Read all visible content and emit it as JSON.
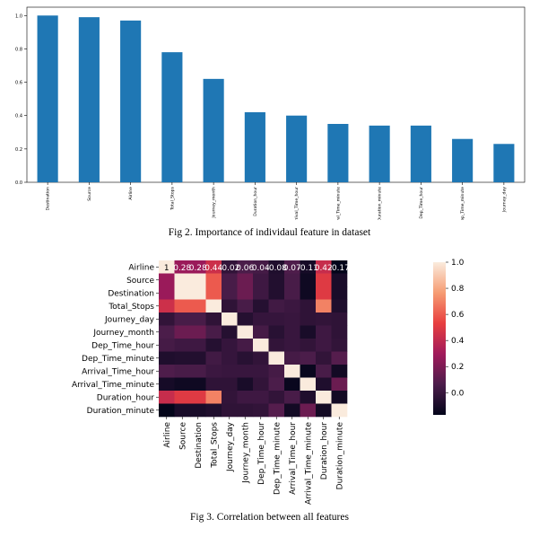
{
  "captions": {
    "fig2": "Fig 2. Importance of individaul feature in dataset",
    "fig3": "Fig 3. Correlation between all features"
  },
  "chart_data": [
    {
      "type": "bar",
      "categories": [
        "Destination",
        "Source",
        "Airline",
        "Total_Stops",
        "Journey_month",
        "Duration_hour",
        "Arrival_Time_hour",
        "Arrival_Time_minute",
        "Duration_minute",
        "Dep_Time_hour",
        "Dep_Time_minute",
        "Journey_day"
      ],
      "values": [
        1.0,
        0.99,
        0.97,
        0.78,
        0.62,
        0.42,
        0.4,
        0.35,
        0.34,
        0.34,
        0.26,
        0.23
      ],
      "yticks": [
        "0.0",
        "0.2",
        "0.4",
        "0.6",
        "0.8",
        "1.0"
      ],
      "ylim": [
        0,
        1.05
      ],
      "bar_color": "#1f77b4"
    },
    {
      "type": "heatmap",
      "labels": [
        "Airline",
        "Source",
        "Destination",
        "Total_Stops",
        "Journey_day",
        "Journey_month",
        "Dep_Time_hour",
        "Dep_Time_minute",
        "Arrival_Time_hour",
        "Arrival_Time_minute",
        "Duration_hour",
        "Duration_minute"
      ],
      "first_row_annotations": [
        "1",
        "0.28",
        "0.28",
        "0.44",
        "-0.02",
        "0.06",
        "0.04",
        "-0.08",
        "0.07",
        "-0.11",
        "0.42",
        "-0.17"
      ],
      "matrix": [
        [
          1.0,
          0.28,
          0.28,
          0.44,
          -0.02,
          0.06,
          0.04,
          -0.08,
          0.07,
          -0.11,
          0.42,
          -0.17
        ],
        [
          0.28,
          1.0,
          1.0,
          0.6,
          0.05,
          0.15,
          0.02,
          -0.07,
          0.05,
          -0.13,
          0.5,
          -0.1
        ],
        [
          0.28,
          1.0,
          1.0,
          0.6,
          0.05,
          0.15,
          0.02,
          -0.07,
          0.05,
          -0.13,
          0.5,
          -0.1
        ],
        [
          0.44,
          0.6,
          0.6,
          1.0,
          -0.03,
          0.05,
          -0.06,
          0.03,
          0.01,
          -0.03,
          0.7,
          -0.08
        ],
        [
          -0.02,
          0.05,
          0.05,
          -0.03,
          1.0,
          -0.06,
          -0.01,
          -0.01,
          0.0,
          -0.03,
          -0.02,
          -0.03
        ],
        [
          0.06,
          0.15,
          0.15,
          0.05,
          -0.06,
          1.0,
          0.04,
          -0.05,
          0.0,
          -0.1,
          0.02,
          -0.03
        ],
        [
          0.04,
          0.02,
          0.02,
          -0.06,
          -0.01,
          0.04,
          1.0,
          -0.02,
          0.0,
          -0.02,
          0.02,
          -0.02
        ],
        [
          -0.08,
          -0.07,
          -0.07,
          0.03,
          -0.01,
          -0.05,
          -0.02,
          1.0,
          0.04,
          0.06,
          -0.02,
          0.09
        ],
        [
          0.07,
          0.05,
          0.05,
          0.01,
          0.0,
          0.0,
          0.0,
          0.04,
          1.0,
          -0.15,
          0.05,
          -0.12
        ],
        [
          -0.11,
          -0.13,
          -0.13,
          -0.03,
          -0.03,
          -0.1,
          -0.02,
          0.06,
          -0.15,
          1.0,
          -0.08,
          0.15
        ],
        [
          0.42,
          0.5,
          0.5,
          0.7,
          -0.02,
          0.02,
          0.02,
          -0.02,
          0.05,
          -0.08,
          1.0,
          -0.12
        ],
        [
          -0.17,
          -0.1,
          -0.1,
          -0.08,
          -0.03,
          -0.03,
          -0.02,
          0.09,
          -0.12,
          0.15,
          -0.12,
          1.0
        ]
      ],
      "colorbar_ticks": [
        "1.0",
        "0.8",
        "0.6",
        "0.4",
        "0.2",
        "0.0"
      ],
      "vmin": -0.17,
      "vmax": 1.0,
      "colormap": "rocket",
      "stops": [
        "#03051a",
        "#4c1d4b",
        "#a11a5b",
        "#e83f3f",
        "#f69c73",
        "#faebdd"
      ]
    }
  ]
}
